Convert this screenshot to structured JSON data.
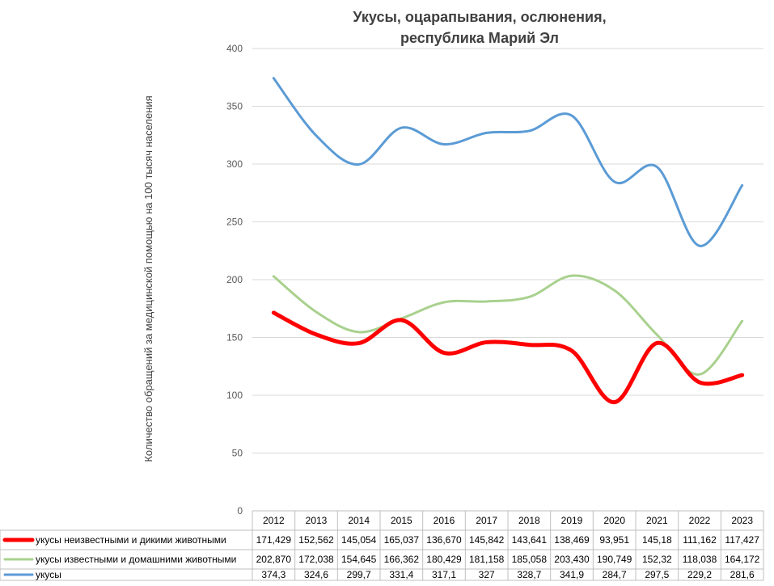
{
  "chart_data": {
    "type": "line",
    "title_line1": "Укусы, оцарапывания, ослюнения,",
    "title_line2": "республика Марий Эл",
    "xlabel": "",
    "ylabel": "Количество обращений за медицинской помощью на 100 тысяч населения",
    "ylim": [
      0,
      400
    ],
    "yticks": [
      "0",
      "50",
      "100",
      "150",
      "200",
      "250",
      "300",
      "350",
      "400"
    ],
    "grid": true,
    "legend_placement": "data-table-below",
    "categories": [
      "2012",
      "2013",
      "2014",
      "2015",
      "2016",
      "2017",
      "2018",
      "2019",
      "2020",
      "2021",
      "2022",
      "2023"
    ],
    "series": [
      {
        "name": "укусы неизвестными и дикими животными",
        "color": "#ff0000",
        "values": [
          171.429,
          152.562,
          145.054,
          165.037,
          136.67,
          145.842,
          143.641,
          138.469,
          93.951,
          145.18,
          111.162,
          117.427
        ],
        "labels": [
          "171,429",
          "152,562",
          "145,054",
          "165,037",
          "136,670",
          "145,842",
          "143,641",
          "138,469",
          "93,951",
          "145,18",
          "111,162",
          "117,427"
        ]
      },
      {
        "name": "укусы известными и домашними животными",
        "color": "#a9d18e",
        "values": [
          202.87,
          172.038,
          154.645,
          166.362,
          180.429,
          181.158,
          185.058,
          203.43,
          190.749,
          152.32,
          118.038,
          164.172
        ],
        "labels": [
          "202,870",
          "172,038",
          "154,645",
          "166,362",
          "180,429",
          "181,158",
          "185,058",
          "203,430",
          "190,749",
          "152,32",
          "118,038",
          "164,172"
        ]
      },
      {
        "name": "укусы",
        "color": "#5b9bd5",
        "values": [
          374.3,
          324.6,
          299.7,
          331.4,
          317.1,
          327,
          328.7,
          341.9,
          284.7,
          297.5,
          229.2,
          281.6
        ],
        "labels": [
          "374,3",
          "324,6",
          "299,7",
          "331,4",
          "317,1",
          "327",
          "328,7",
          "341,9",
          "284,7",
          "297,5",
          "229,2",
          "281,6"
        ]
      }
    ]
  }
}
